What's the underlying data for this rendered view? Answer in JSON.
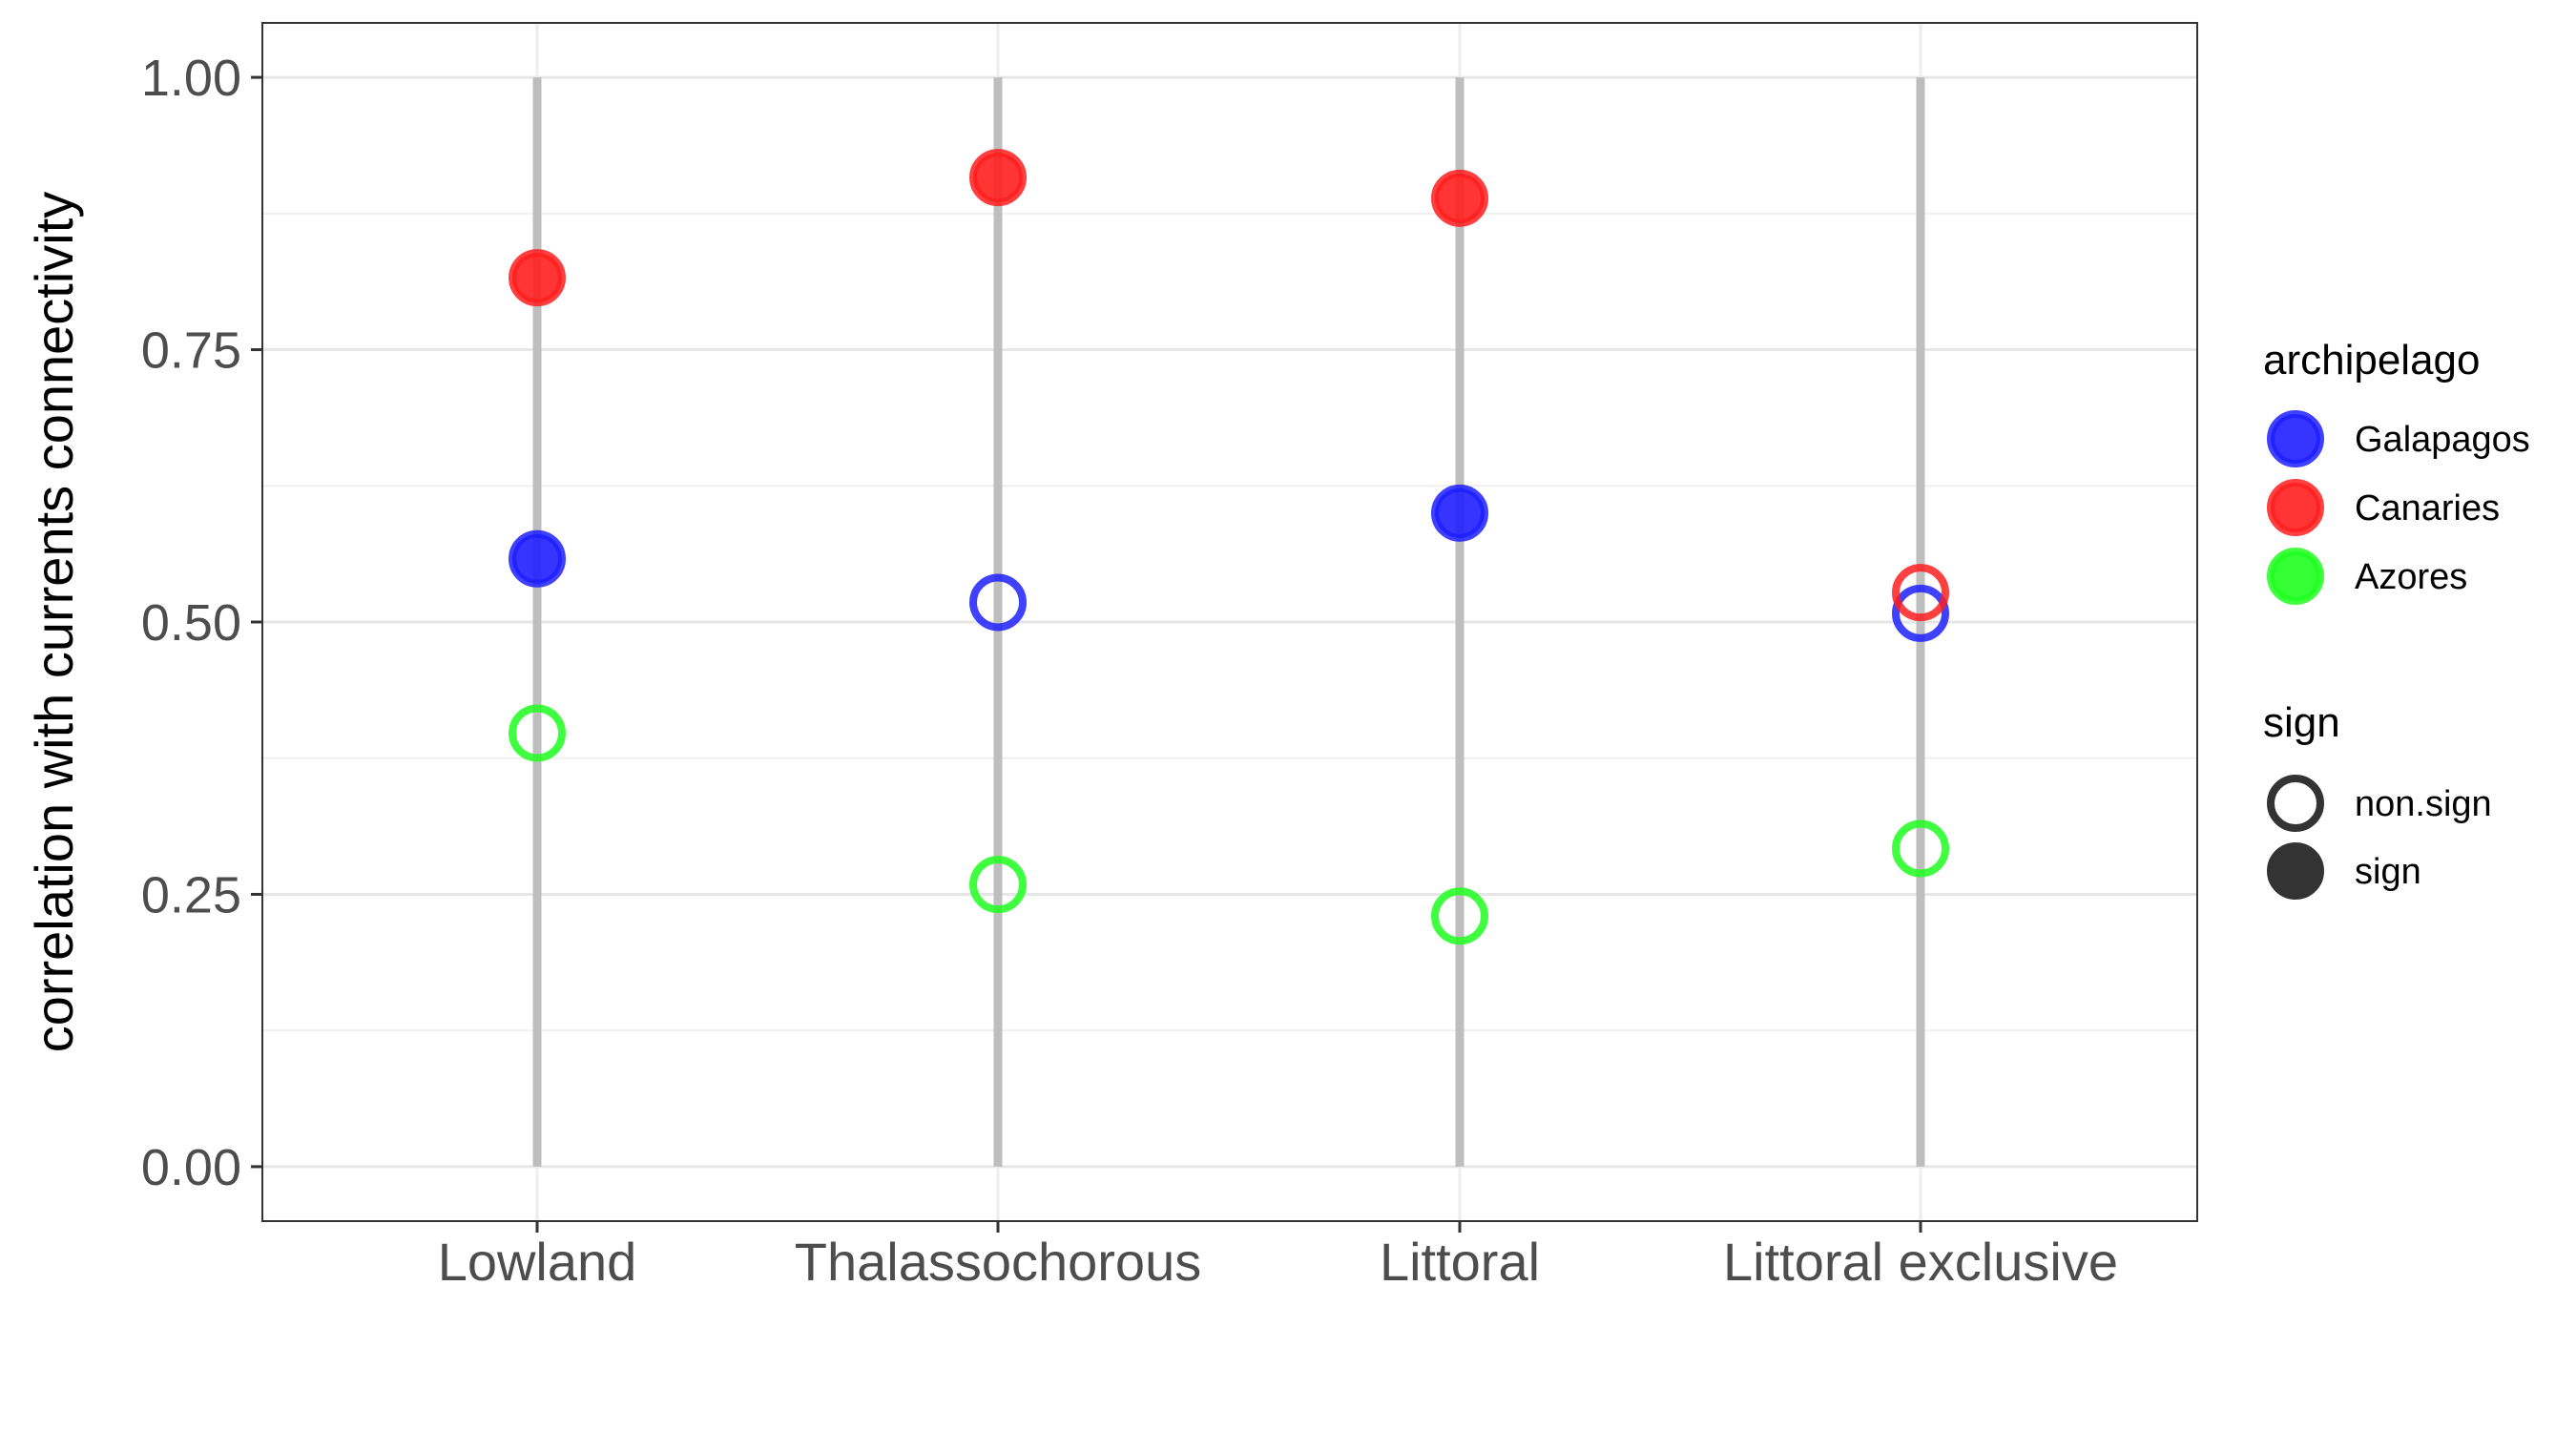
{
  "chart_data": {
    "type": "scatter",
    "title": "",
    "xlabel": "",
    "ylabel": "correlation with currents connectivity",
    "categories": [
      "Lowland",
      "Thalassochorous",
      "Littoral",
      "Littoral exclusive"
    ],
    "ylim": [
      -0.05,
      1.05
    ],
    "yticks": [
      0.0,
      0.25,
      0.5,
      0.75,
      1.0
    ],
    "ytick_labels": [
      "0.00",
      "0.25",
      "0.50",
      "0.75",
      "1.00"
    ],
    "segment_range": [
      0.0,
      1.0
    ],
    "grid": true,
    "series": [
      {
        "name": "Galapagos",
        "color": "#1f1fff",
        "points": [
          {
            "category": "Lowland",
            "value": 0.558,
            "sign": "sign"
          },
          {
            "category": "Thalassochorous",
            "value": 0.518,
            "sign": "non.sign"
          },
          {
            "category": "Littoral",
            "value": 0.6,
            "sign": "sign"
          },
          {
            "category": "Littoral exclusive",
            "value": 0.508,
            "sign": "non.sign"
          }
        ]
      },
      {
        "name": "Canaries",
        "color": "#ff1f1f",
        "points": [
          {
            "category": "Lowland",
            "value": 0.816,
            "sign": "sign"
          },
          {
            "category": "Thalassochorous",
            "value": 0.908,
            "sign": "sign"
          },
          {
            "category": "Littoral",
            "value": 0.889,
            "sign": "sign"
          },
          {
            "category": "Littoral exclusive",
            "value": 0.527,
            "sign": "non.sign"
          }
        ]
      },
      {
        "name": "Azores",
        "color": "#1fff1f",
        "points": [
          {
            "category": "Lowland",
            "value": 0.398,
            "sign": "non.sign"
          },
          {
            "category": "Thalassochorous",
            "value": 0.259,
            "sign": "non.sign"
          },
          {
            "category": "Littoral",
            "value": 0.23,
            "sign": "non.sign"
          },
          {
            "category": "Littoral exclusive",
            "value": 0.292,
            "sign": "non.sign"
          }
        ]
      }
    ],
    "legend": {
      "position": "right",
      "color_title": "archipelago",
      "color_items": [
        "Galapagos",
        "Canaries",
        "Azores"
      ],
      "shape_title": "sign",
      "shape_items": [
        "non.sign",
        "sign"
      ]
    }
  }
}
